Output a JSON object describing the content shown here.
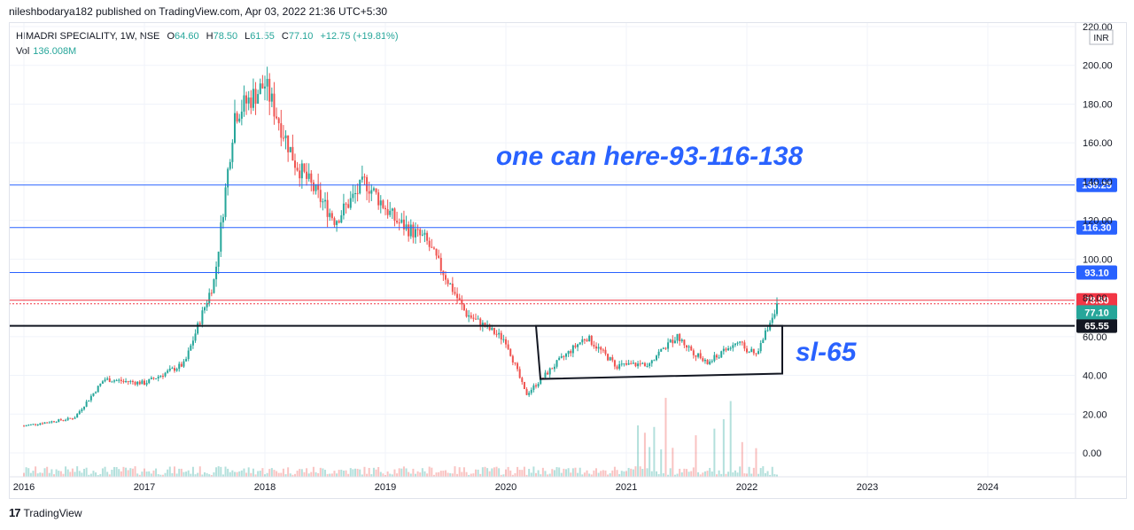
{
  "header": {
    "publish_line": "nileshbodarya182 published on TradingView.com, Apr 03, 2022 21:36 UTC+5:30"
  },
  "legend": {
    "symbol": "HIMADRI SPECIALITY, 1W, NSE",
    "open_label": "O",
    "open": "64.60",
    "high_label": "H",
    "high": "78.50",
    "low_label": "L",
    "low": "61.55",
    "close_label": "C",
    "close": "77.10",
    "change": "+12.75 (+19.81%)",
    "vol_label": "Vol",
    "vol": "136.008M"
  },
  "footer": {
    "brand": "TradingView",
    "logo": "17"
  },
  "colors": {
    "up": "#26a69a",
    "down": "#ef5350",
    "hline_blue": "#2962ff",
    "hline_red": "#f23645",
    "annotation": "#2962ff",
    "box": "#131722"
  },
  "chart_data": {
    "type": "candlestick",
    "currency": "INR",
    "y_ticks": [
      "0.00",
      "20.00",
      "40.00",
      "60.00",
      "80.00",
      "100.00",
      "120.00",
      "140.00",
      "160.00",
      "180.00",
      "200.00",
      "220.00"
    ],
    "x_ticks": [
      "2016",
      "2017",
      "2018",
      "2019",
      "2020",
      "2021",
      "2022",
      "2023",
      "2024"
    ],
    "ylim": [
      0,
      220
    ],
    "price_path_key_points": [
      {
        "x": "2016-01",
        "y": 14
      },
      {
        "x": "2016-06",
        "y": 18
      },
      {
        "x": "2016-09",
        "y": 38
      },
      {
        "x": "2017-01",
        "y": 36
      },
      {
        "x": "2017-05",
        "y": 46
      },
      {
        "x": "2017-08",
        "y": 90
      },
      {
        "x": "2017-10",
        "y": 175
      },
      {
        "x": "2018-01",
        "y": 190
      },
      {
        "x": "2018-04",
        "y": 150
      },
      {
        "x": "2018-08",
        "y": 120
      },
      {
        "x": "2018-11",
        "y": 140
      },
      {
        "x": "2019-02",
        "y": 120
      },
      {
        "x": "2019-05",
        "y": 110
      },
      {
        "x": "2019-09",
        "y": 72
      },
      {
        "x": "2020-01",
        "y": 58
      },
      {
        "x": "2020-03",
        "y": 30
      },
      {
        "x": "2020-06",
        "y": 46
      },
      {
        "x": "2020-09",
        "y": 60
      },
      {
        "x": "2020-12",
        "y": 45
      },
      {
        "x": "2021-03",
        "y": 46
      },
      {
        "x": "2021-06",
        "y": 60
      },
      {
        "x": "2021-09",
        "y": 46
      },
      {
        "x": "2021-12",
        "y": 57
      },
      {
        "x": "2022-02",
        "y": 50
      },
      {
        "x": "2022-03",
        "y": 64
      },
      {
        "x": "2022-04",
        "y": 77.1
      }
    ],
    "horizontal_lines": [
      {
        "value": 138.25,
        "label": "138.25",
        "color": "blue"
      },
      {
        "value": 116.3,
        "label": "116.30",
        "color": "blue"
      },
      {
        "value": 93.1,
        "label": "93.10",
        "color": "blue"
      },
      {
        "value": 78.8,
        "label": "78.80",
        "color": "red"
      },
      {
        "value": 65.55,
        "label": "65.55",
        "color": "black"
      }
    ],
    "last_price": {
      "value": 77.1,
      "label": "77.10"
    },
    "annotations": [
      {
        "text": "one can here-93-116-138"
      },
      {
        "text": "sl-65"
      }
    ],
    "box": {
      "x_start": "2020-04",
      "x_end": "2022-04",
      "top": 65.55,
      "bottom": 40
    }
  }
}
